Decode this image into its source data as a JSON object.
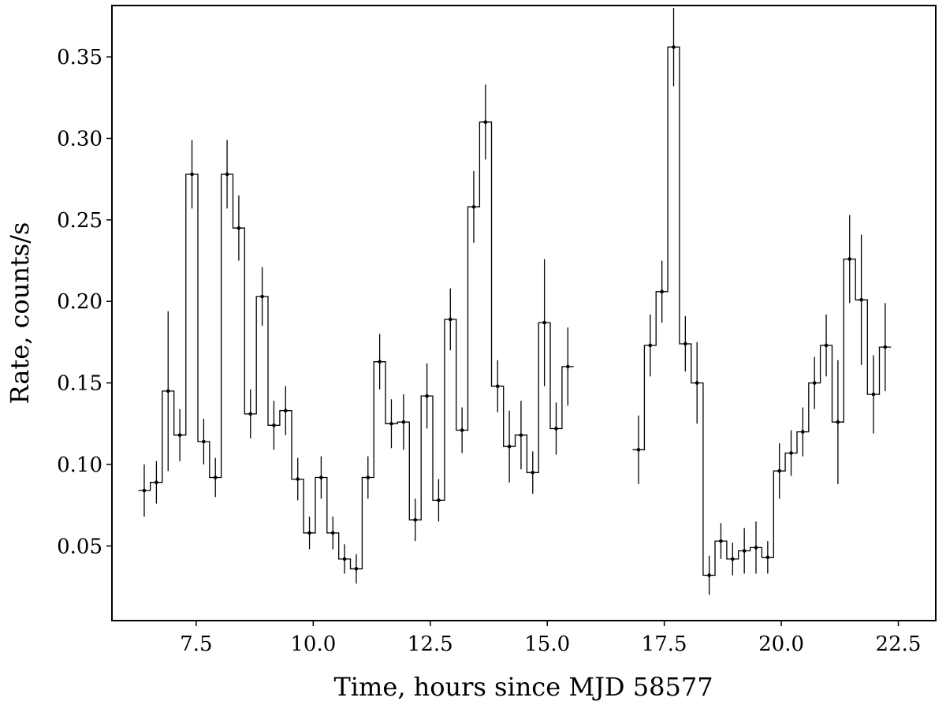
{
  "chart_data": {
    "type": "line",
    "style": "step-with-errorbars",
    "title": "",
    "xlabel": "Time, hours since MJD 58577",
    "ylabel": "Rate, counts/s",
    "xlim": [
      5.7,
      23.3
    ],
    "ylim": [
      0.0042,
      0.3815
    ],
    "x_ticks": [
      7.5,
      10.0,
      12.5,
      15.0,
      17.5,
      20.0,
      22.5
    ],
    "x_tick_labels": [
      "7.5",
      "10.0",
      "12.5",
      "15.0",
      "17.5",
      "20.0",
      "22.5"
    ],
    "y_ticks": [
      0.05,
      0.1,
      0.15,
      0.2,
      0.25,
      0.3,
      0.35
    ],
    "y_tick_labels": [
      "0.05",
      "0.10",
      "0.15",
      "0.20",
      "0.25",
      "0.30",
      "0.35"
    ],
    "grid": false,
    "legend": "none",
    "bin_width_hours": 0.25,
    "segments": [
      {
        "x": [
          6.39,
          6.65,
          6.9,
          7.15,
          7.41,
          7.66,
          7.91,
          8.16,
          8.41,
          8.66,
          8.91,
          9.16,
          9.41,
          9.67,
          9.92,
          10.17,
          10.42,
          10.67,
          10.92,
          11.17,
          11.42,
          11.67,
          11.93,
          12.18,
          12.43,
          12.68,
          12.93,
          13.18,
          13.43,
          13.68,
          13.94,
          14.19,
          14.44,
          14.69,
          14.94,
          15.19,
          15.44,
          15.69,
          15.95,
          16.2,
          16.4
        ],
        "y": [
          0.084,
          0.089,
          0.145,
          0.118,
          0.278,
          0.114,
          0.092,
          0.278,
          0.245,
          0.131,
          0.203,
          0.124,
          0.133,
          0.091,
          0.058,
          0.092,
          0.058,
          0.042,
          0.036,
          0.092,
          0.163,
          0.125,
          0.126,
          0.066,
          0.142,
          0.078,
          0.189,
          0.121,
          0.258,
          0.31,
          0.148,
          0.111,
          0.118,
          0.095,
          0.187,
          0.122,
          0.16,
          null,
          null,
          null,
          null
        ],
        "yerr": [
          0.016,
          0.013,
          0.049,
          0.016,
          0.021,
          0.014,
          0.012,
          0.021,
          0.02,
          0.015,
          0.018,
          0.015,
          0.015,
          0.013,
          0.01,
          0.013,
          0.01,
          0.009,
          0.009,
          0.013,
          0.017,
          0.015,
          0.017,
          0.013,
          0.02,
          0.013,
          0.019,
          0.014,
          0.022,
          0.023,
          0.016,
          0.022,
          0.021,
          0.013,
          0.039,
          0.016,
          0.024,
          null,
          null,
          null,
          null
        ]
      },
      {
        "x": [
          16.95,
          17.2,
          17.45,
          17.7,
          17.95,
          18.2,
          18.46,
          18.71,
          18.96,
          19.21,
          19.46,
          19.71,
          19.96,
          20.21,
          20.46,
          20.71,
          20.96,
          21.21,
          21.46,
          21.71,
          21.97,
          22.22,
          22.47,
          22.72
        ],
        "y": [
          0.109,
          0.173,
          0.206,
          0.356,
          0.174,
          0.15,
          0.032,
          0.053,
          0.042,
          0.047,
          0.049,
          0.043,
          0.096,
          0.107,
          0.12,
          0.15,
          0.173,
          0.126,
          0.226,
          0.201,
          0.143,
          0.172,
          null,
          null
        ],
        "yerr": [
          0.021,
          0.019,
          0.019,
          0.024,
          0.017,
          0.025,
          0.012,
          0.011,
          0.01,
          0.014,
          0.016,
          0.01,
          0.017,
          0.014,
          0.015,
          0.016,
          0.019,
          0.038,
          0.027,
          0.04,
          0.024,
          0.027,
          null,
          null
        ]
      }
    ]
  }
}
